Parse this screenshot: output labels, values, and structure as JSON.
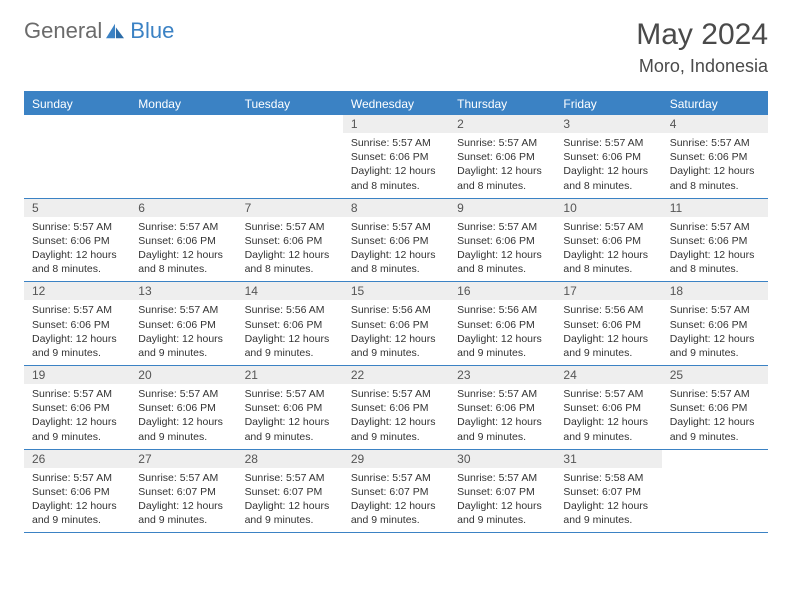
{
  "logo": {
    "part1": "General",
    "part2": "Blue"
  },
  "title": "May 2024",
  "location": "Moro, Indonesia",
  "colors": {
    "brand": "#3B82C4",
    "header_bg": "#3B82C4",
    "header_text": "#ffffff",
    "daynum_bg": "#eeeeee",
    "text": "#333333",
    "border": "#3B82C4"
  },
  "day_names": [
    "Sunday",
    "Monday",
    "Tuesday",
    "Wednesday",
    "Thursday",
    "Friday",
    "Saturday"
  ],
  "weeks": [
    [
      {
        "num": "",
        "sunrise": "",
        "sunset": "",
        "daylight": ""
      },
      {
        "num": "",
        "sunrise": "",
        "sunset": "",
        "daylight": ""
      },
      {
        "num": "",
        "sunrise": "",
        "sunset": "",
        "daylight": ""
      },
      {
        "num": "1",
        "sunrise": "Sunrise: 5:57 AM",
        "sunset": "Sunset: 6:06 PM",
        "daylight": "Daylight: 12 hours and 8 minutes."
      },
      {
        "num": "2",
        "sunrise": "Sunrise: 5:57 AM",
        "sunset": "Sunset: 6:06 PM",
        "daylight": "Daylight: 12 hours and 8 minutes."
      },
      {
        "num": "3",
        "sunrise": "Sunrise: 5:57 AM",
        "sunset": "Sunset: 6:06 PM",
        "daylight": "Daylight: 12 hours and 8 minutes."
      },
      {
        "num": "4",
        "sunrise": "Sunrise: 5:57 AM",
        "sunset": "Sunset: 6:06 PM",
        "daylight": "Daylight: 12 hours and 8 minutes."
      }
    ],
    [
      {
        "num": "5",
        "sunrise": "Sunrise: 5:57 AM",
        "sunset": "Sunset: 6:06 PM",
        "daylight": "Daylight: 12 hours and 8 minutes."
      },
      {
        "num": "6",
        "sunrise": "Sunrise: 5:57 AM",
        "sunset": "Sunset: 6:06 PM",
        "daylight": "Daylight: 12 hours and 8 minutes."
      },
      {
        "num": "7",
        "sunrise": "Sunrise: 5:57 AM",
        "sunset": "Sunset: 6:06 PM",
        "daylight": "Daylight: 12 hours and 8 minutes."
      },
      {
        "num": "8",
        "sunrise": "Sunrise: 5:57 AM",
        "sunset": "Sunset: 6:06 PM",
        "daylight": "Daylight: 12 hours and 8 minutes."
      },
      {
        "num": "9",
        "sunrise": "Sunrise: 5:57 AM",
        "sunset": "Sunset: 6:06 PM",
        "daylight": "Daylight: 12 hours and 8 minutes."
      },
      {
        "num": "10",
        "sunrise": "Sunrise: 5:57 AM",
        "sunset": "Sunset: 6:06 PM",
        "daylight": "Daylight: 12 hours and 8 minutes."
      },
      {
        "num": "11",
        "sunrise": "Sunrise: 5:57 AM",
        "sunset": "Sunset: 6:06 PM",
        "daylight": "Daylight: 12 hours and 8 minutes."
      }
    ],
    [
      {
        "num": "12",
        "sunrise": "Sunrise: 5:57 AM",
        "sunset": "Sunset: 6:06 PM",
        "daylight": "Daylight: 12 hours and 9 minutes."
      },
      {
        "num": "13",
        "sunrise": "Sunrise: 5:57 AM",
        "sunset": "Sunset: 6:06 PM",
        "daylight": "Daylight: 12 hours and 9 minutes."
      },
      {
        "num": "14",
        "sunrise": "Sunrise: 5:56 AM",
        "sunset": "Sunset: 6:06 PM",
        "daylight": "Daylight: 12 hours and 9 minutes."
      },
      {
        "num": "15",
        "sunrise": "Sunrise: 5:56 AM",
        "sunset": "Sunset: 6:06 PM",
        "daylight": "Daylight: 12 hours and 9 minutes."
      },
      {
        "num": "16",
        "sunrise": "Sunrise: 5:56 AM",
        "sunset": "Sunset: 6:06 PM",
        "daylight": "Daylight: 12 hours and 9 minutes."
      },
      {
        "num": "17",
        "sunrise": "Sunrise: 5:56 AM",
        "sunset": "Sunset: 6:06 PM",
        "daylight": "Daylight: 12 hours and 9 minutes."
      },
      {
        "num": "18",
        "sunrise": "Sunrise: 5:57 AM",
        "sunset": "Sunset: 6:06 PM",
        "daylight": "Daylight: 12 hours and 9 minutes."
      }
    ],
    [
      {
        "num": "19",
        "sunrise": "Sunrise: 5:57 AM",
        "sunset": "Sunset: 6:06 PM",
        "daylight": "Daylight: 12 hours and 9 minutes."
      },
      {
        "num": "20",
        "sunrise": "Sunrise: 5:57 AM",
        "sunset": "Sunset: 6:06 PM",
        "daylight": "Daylight: 12 hours and 9 minutes."
      },
      {
        "num": "21",
        "sunrise": "Sunrise: 5:57 AM",
        "sunset": "Sunset: 6:06 PM",
        "daylight": "Daylight: 12 hours and 9 minutes."
      },
      {
        "num": "22",
        "sunrise": "Sunrise: 5:57 AM",
        "sunset": "Sunset: 6:06 PM",
        "daylight": "Daylight: 12 hours and 9 minutes."
      },
      {
        "num": "23",
        "sunrise": "Sunrise: 5:57 AM",
        "sunset": "Sunset: 6:06 PM",
        "daylight": "Daylight: 12 hours and 9 minutes."
      },
      {
        "num": "24",
        "sunrise": "Sunrise: 5:57 AM",
        "sunset": "Sunset: 6:06 PM",
        "daylight": "Daylight: 12 hours and 9 minutes."
      },
      {
        "num": "25",
        "sunrise": "Sunrise: 5:57 AM",
        "sunset": "Sunset: 6:06 PM",
        "daylight": "Daylight: 12 hours and 9 minutes."
      }
    ],
    [
      {
        "num": "26",
        "sunrise": "Sunrise: 5:57 AM",
        "sunset": "Sunset: 6:06 PM",
        "daylight": "Daylight: 12 hours and 9 minutes."
      },
      {
        "num": "27",
        "sunrise": "Sunrise: 5:57 AM",
        "sunset": "Sunset: 6:07 PM",
        "daylight": "Daylight: 12 hours and 9 minutes."
      },
      {
        "num": "28",
        "sunrise": "Sunrise: 5:57 AM",
        "sunset": "Sunset: 6:07 PM",
        "daylight": "Daylight: 12 hours and 9 minutes."
      },
      {
        "num": "29",
        "sunrise": "Sunrise: 5:57 AM",
        "sunset": "Sunset: 6:07 PM",
        "daylight": "Daylight: 12 hours and 9 minutes."
      },
      {
        "num": "30",
        "sunrise": "Sunrise: 5:57 AM",
        "sunset": "Sunset: 6:07 PM",
        "daylight": "Daylight: 12 hours and 9 minutes."
      },
      {
        "num": "31",
        "sunrise": "Sunrise: 5:58 AM",
        "sunset": "Sunset: 6:07 PM",
        "daylight": "Daylight: 12 hours and 9 minutes."
      },
      {
        "num": "",
        "sunrise": "",
        "sunset": "",
        "daylight": ""
      }
    ]
  ]
}
